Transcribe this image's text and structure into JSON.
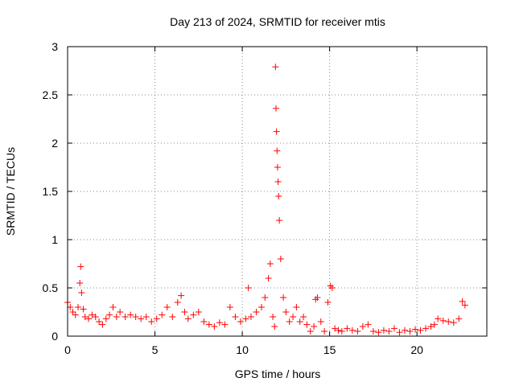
{
  "chart_data": {
    "type": "scatter",
    "title": "Day 213 of 2024, SRMTID for receiver mtis",
    "xlabel": "GPS time / hours",
    "ylabel": "SRMTID / TECUs",
    "xlim": [
      0,
      24
    ],
    "ylim": [
      0,
      3
    ],
    "xticks": [
      0,
      5,
      10,
      15,
      20
    ],
    "xtick_labels": [
      "0",
      "5",
      "10",
      "15",
      "20"
    ],
    "yticks": [
      0,
      0.5,
      1,
      1.5,
      2,
      2.5,
      3
    ],
    "ytick_labels": [
      "0",
      "0.5",
      "1",
      "1.5",
      "2",
      "2.5",
      "3"
    ],
    "grid": true,
    "marker": "+",
    "series": [
      {
        "name": "SRMTID",
        "color": "#ff0000",
        "x": [
          0.0,
          0.15,
          0.3,
          0.45,
          0.6,
          0.7,
          0.75,
          0.8,
          0.9,
          1.0,
          1.2,
          1.4,
          1.6,
          1.8,
          2.0,
          2.2,
          2.4,
          2.6,
          2.8,
          3.0,
          3.3,
          3.6,
          3.9,
          4.2,
          4.5,
          4.8,
          5.1,
          5.4,
          5.7,
          6.0,
          6.3,
          6.5,
          6.7,
          6.9,
          7.2,
          7.5,
          7.8,
          8.1,
          8.4,
          8.7,
          9.0,
          9.3,
          9.6,
          9.9,
          10.2,
          10.35,
          10.5,
          10.8,
          11.1,
          11.3,
          11.5,
          11.6,
          11.75,
          11.85,
          11.9,
          11.93,
          11.96,
          11.99,
          12.02,
          12.05,
          12.08,
          12.12,
          12.2,
          12.35,
          12.5,
          12.7,
          12.9,
          13.1,
          13.3,
          13.5,
          13.7,
          13.9,
          14.1,
          14.2,
          14.3,
          14.5,
          14.7,
          14.9,
          15.05,
          15.15,
          15.3,
          15.5,
          15.7,
          16.0,
          16.3,
          16.6,
          16.9,
          17.2,
          17.5,
          17.8,
          18.1,
          18.4,
          18.7,
          19.0,
          19.3,
          19.6,
          19.9,
          20.2,
          20.5,
          20.8,
          21.0,
          21.2,
          21.5,
          21.8,
          22.1,
          22.4,
          22.6,
          22.75
        ],
        "y": [
          0.35,
          0.3,
          0.25,
          0.22,
          0.3,
          0.55,
          0.72,
          0.45,
          0.28,
          0.2,
          0.18,
          0.22,
          0.2,
          0.15,
          0.12,
          0.18,
          0.22,
          0.3,
          0.2,
          0.25,
          0.2,
          0.22,
          0.2,
          0.18,
          0.2,
          0.15,
          0.18,
          0.22,
          0.3,
          0.2,
          0.35,
          0.42,
          0.25,
          0.18,
          0.22,
          0.25,
          0.15,
          0.12,
          0.1,
          0.14,
          0.12,
          0.3,
          0.2,
          0.15,
          0.18,
          0.5,
          0.2,
          0.25,
          0.3,
          0.4,
          0.6,
          0.75,
          0.2,
          0.1,
          2.79,
          2.36,
          2.12,
          1.92,
          1.75,
          1.6,
          1.45,
          1.2,
          0.8,
          0.4,
          0.25,
          0.15,
          0.2,
          0.3,
          0.15,
          0.2,
          0.12,
          0.05,
          0.1,
          0.38,
          0.4,
          0.15,
          0.05,
          0.35,
          0.52,
          0.5,
          0.08,
          0.06,
          0.05,
          0.08,
          0.06,
          0.05,
          0.1,
          0.12,
          0.05,
          0.04,
          0.06,
          0.05,
          0.08,
          0.04,
          0.06,
          0.05,
          0.07,
          0.06,
          0.08,
          0.1,
          0.12,
          0.18,
          0.16,
          0.15,
          0.14,
          0.18,
          0.36,
          0.32
        ]
      }
    ]
  }
}
